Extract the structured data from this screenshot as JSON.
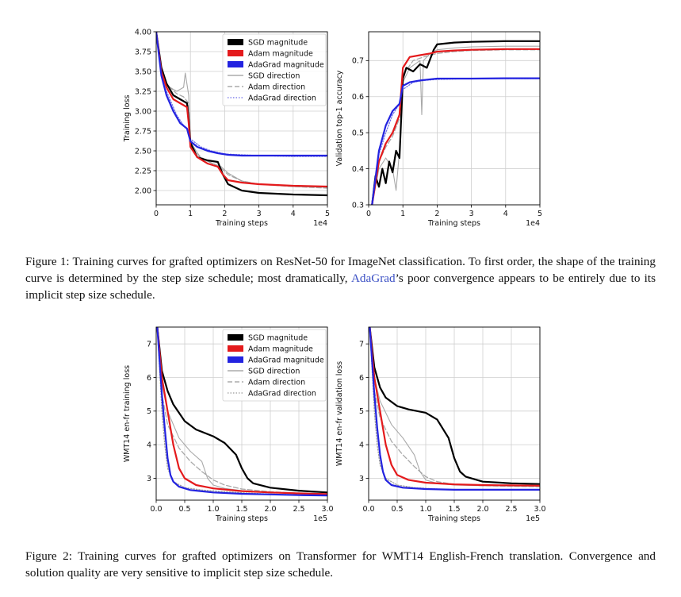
{
  "figure1": {
    "label": "Figure 1:",
    "caption_part1": "Training curves for grafted optimizers on ResNet-50 for ImageNet classification. To first order, the shape of the training curve is determined by the step size schedule; most dramatically, ",
    "caption_link": "AdaGrad",
    "caption_part2": "’s poor convergence appears to be entirely due to its implicit step size schedule."
  },
  "figure2": {
    "label": "Figure 2:",
    "caption": "Training curves for grafted optimizers on Transformer for WMT14 English-French translation. Convergence and solution quality are very sensitive to implicit step size schedule."
  },
  "chart_data": [
    {
      "id": "c1",
      "type": "line",
      "xlabel": "Training steps",
      "ylabel": "Training loss",
      "x_offset_label": "1e4",
      "xlim": [
        0,
        5
      ],
      "ylim": [
        1.82,
        4.0
      ],
      "xticks": [
        "0",
        "1",
        "2",
        "3",
        "4",
        "5"
      ],
      "yticks": [
        "2.00",
        "2.25",
        "2.50",
        "2.75",
        "3.00",
        "3.25",
        "3.50",
        "3.75",
        "4.00"
      ],
      "grid": true,
      "legend": {
        "placement": "top-right",
        "entries": [
          "SGD magnitude",
          "Adam magnitude",
          "AdaGrad magnitude",
          "SGD direction",
          "Adam direction",
          "AdaGrad direction"
        ]
      },
      "series": [
        {
          "name": "SGD magnitude",
          "color": "#000000",
          "style": "thick",
          "x": [
            0,
            0.15,
            0.3,
            0.5,
            0.7,
            0.9,
            0.95,
            1.0,
            1.2,
            1.5,
            1.8,
            1.95,
            2.1,
            2.5,
            3.0,
            4.0,
            5.0
          ],
          "y": [
            4.0,
            3.55,
            3.35,
            3.2,
            3.15,
            3.1,
            2.9,
            2.6,
            2.42,
            2.38,
            2.36,
            2.2,
            2.08,
            2.0,
            1.97,
            1.95,
            1.94
          ]
        },
        {
          "name": "Adam magnitude",
          "color": "#e41a1c",
          "style": "thick",
          "x": [
            0,
            0.15,
            0.3,
            0.5,
            0.7,
            0.9,
            0.95,
            1.0,
            1.2,
            1.5,
            1.8,
            1.95,
            2.1,
            2.5,
            3.0,
            4.0,
            5.0
          ],
          "y": [
            4.0,
            3.5,
            3.3,
            3.15,
            3.1,
            3.05,
            2.85,
            2.55,
            2.42,
            2.34,
            2.3,
            2.2,
            2.13,
            2.1,
            2.08,
            2.06,
            2.05
          ]
        },
        {
          "name": "AdaGrad magnitude",
          "color": "#2323e0",
          "style": "thick",
          "x": [
            0,
            0.15,
            0.3,
            0.5,
            0.7,
            0.9,
            0.95,
            1.0,
            1.2,
            1.5,
            1.8,
            1.95,
            2.1,
            2.5,
            3.0,
            4.0,
            5.0
          ],
          "y": [
            4.0,
            3.45,
            3.2,
            3.0,
            2.85,
            2.78,
            2.7,
            2.62,
            2.55,
            2.5,
            2.47,
            2.46,
            2.45,
            2.44,
            2.44,
            2.44,
            2.44
          ]
        },
        {
          "name": "SGD direction",
          "color": "#9a9a9a",
          "style": "solid",
          "x": [
            0,
            0.2,
            0.4,
            0.6,
            0.8,
            0.85,
            0.95,
            1.0,
            1.3,
            1.6,
            1.9,
            2.1,
            2.5,
            3.0,
            4.0,
            5.0
          ],
          "y": [
            4.0,
            3.4,
            3.3,
            3.25,
            3.3,
            3.48,
            3.2,
            2.62,
            2.4,
            2.35,
            2.3,
            2.22,
            2.12,
            2.08,
            2.05,
            2.04
          ]
        },
        {
          "name": "Adam direction",
          "color": "#9a9a9a",
          "style": "dashed",
          "x": [
            0,
            0.2,
            0.4,
            0.6,
            0.8,
            0.95,
            1.0,
            1.3,
            1.6,
            1.9,
            2.1,
            2.5,
            3.0,
            4.0,
            5.0
          ],
          "y": [
            4.0,
            3.4,
            3.3,
            3.22,
            3.18,
            3.1,
            2.58,
            2.42,
            2.35,
            2.28,
            2.2,
            2.12,
            2.08,
            2.05,
            2.03
          ]
        },
        {
          "name": "AdaGrad direction",
          "color": "#6b6be8",
          "style": "dotted",
          "x": [
            0,
            0.2,
            0.4,
            0.6,
            0.8,
            0.95,
            1.0,
            1.3,
            1.6,
            2.0,
            2.5,
            3.0,
            4.0,
            5.0
          ],
          "y": [
            4.0,
            3.35,
            3.15,
            2.95,
            2.82,
            2.75,
            2.65,
            2.55,
            2.5,
            2.46,
            2.45,
            2.44,
            2.43,
            2.43
          ]
        }
      ]
    },
    {
      "id": "c2",
      "type": "line",
      "xlabel": "Training steps",
      "ylabel": "Validation top-1 accuracy",
      "x_offset_label": "1e4",
      "xlim": [
        0,
        5
      ],
      "ylim": [
        0.3,
        0.78
      ],
      "xticks": [
        "0",
        "1",
        "2",
        "3",
        "4",
        "5"
      ],
      "yticks": [
        "0.3",
        "0.4",
        "0.5",
        "0.6",
        "0.7"
      ],
      "grid": true,
      "series": [
        {
          "name": "SGD magnitude",
          "color": "#000000",
          "style": "thick",
          "x": [
            0.1,
            0.2,
            0.3,
            0.4,
            0.5,
            0.6,
            0.7,
            0.8,
            0.9,
            1.0,
            1.1,
            1.3,
            1.5,
            1.7,
            1.9,
            2.0,
            2.5,
            3.0,
            4.0,
            5.0
          ],
          "y": [
            0.3,
            0.38,
            0.35,
            0.4,
            0.36,
            0.42,
            0.39,
            0.45,
            0.43,
            0.65,
            0.68,
            0.67,
            0.69,
            0.68,
            0.73,
            0.745,
            0.75,
            0.752,
            0.754,
            0.754
          ]
        },
        {
          "name": "Adam magnitude",
          "color": "#e41a1c",
          "style": "thick",
          "x": [
            0.1,
            0.3,
            0.5,
            0.7,
            0.9,
            1.0,
            1.2,
            1.5,
            1.8,
            2.0,
            2.5,
            3.0,
            4.0,
            5.0
          ],
          "y": [
            0.3,
            0.42,
            0.47,
            0.5,
            0.55,
            0.68,
            0.71,
            0.715,
            0.72,
            0.725,
            0.728,
            0.73,
            0.732,
            0.732
          ]
        },
        {
          "name": "AdaGrad magnitude",
          "color": "#2323e0",
          "style": "thick",
          "x": [
            0.1,
            0.3,
            0.5,
            0.7,
            0.9,
            1.0,
            1.2,
            1.5,
            2.0,
            2.5,
            3.0,
            4.0,
            5.0
          ],
          "y": [
            0.3,
            0.45,
            0.52,
            0.56,
            0.58,
            0.63,
            0.64,
            0.645,
            0.65,
            0.65,
            0.65,
            0.651,
            0.651
          ]
        },
        {
          "name": "SGD direction",
          "color": "#9a9a9a",
          "style": "solid",
          "x": [
            0.1,
            0.3,
            0.5,
            0.7,
            0.8,
            0.9,
            1.0,
            1.2,
            1.5,
            1.55,
            1.6,
            1.8,
            2.0,
            2.5,
            3.0,
            4.0,
            5.0
          ],
          "y": [
            0.3,
            0.4,
            0.43,
            0.4,
            0.34,
            0.45,
            0.64,
            0.68,
            0.7,
            0.55,
            0.7,
            0.72,
            0.73,
            0.735,
            0.738,
            0.74,
            0.74
          ]
        },
        {
          "name": "Adam direction",
          "color": "#9a9a9a",
          "style": "dashed",
          "x": [
            0.1,
            0.3,
            0.5,
            0.7,
            0.9,
            1.0,
            1.3,
            1.6,
            2.0,
            2.5,
            3.0,
            4.0,
            5.0
          ],
          "y": [
            0.3,
            0.42,
            0.46,
            0.49,
            0.54,
            0.66,
            0.7,
            0.71,
            0.72,
            0.725,
            0.728,
            0.73,
            0.73
          ]
        },
        {
          "name": "AdaGrad direction",
          "color": "#6b6be8",
          "style": "dotted",
          "x": [
            0.1,
            0.3,
            0.5,
            0.7,
            0.9,
            1.0,
            1.3,
            1.6,
            2.0,
            3.0,
            4.0,
            5.0
          ],
          "y": [
            0.3,
            0.44,
            0.5,
            0.55,
            0.58,
            0.62,
            0.64,
            0.645,
            0.648,
            0.65,
            0.65,
            0.65
          ]
        }
      ]
    },
    {
      "id": "c3",
      "type": "line",
      "xlabel": "Training steps",
      "ylabel": "WMT14 en-fr training loss",
      "x_offset_label": "1e5",
      "xlim": [
        0,
        3.0
      ],
      "ylim": [
        2.35,
        7.5
      ],
      "xticks": [
        "0.0",
        "0.5",
        "1.0",
        "1.5",
        "2.0",
        "2.5",
        "3.0"
      ],
      "yticks": [
        "3",
        "4",
        "5",
        "6",
        "7"
      ],
      "grid": true,
      "legend": {
        "placement": "top-right",
        "entries": [
          "SGD magnitude",
          "Adam magnitude",
          "AdaGrad magnitude",
          "SGD direction",
          "Adam direction",
          "AdaGrad direction"
        ]
      },
      "series": [
        {
          "name": "SGD magnitude",
          "color": "#000000",
          "style": "thick",
          "x": [
            0.02,
            0.1,
            0.2,
            0.3,
            0.5,
            0.7,
            1.0,
            1.2,
            1.4,
            1.5,
            1.6,
            1.7,
            2.0,
            2.5,
            3.0
          ],
          "y": [
            7.5,
            6.2,
            5.6,
            5.2,
            4.7,
            4.45,
            4.25,
            4.05,
            3.7,
            3.3,
            3.0,
            2.85,
            2.72,
            2.63,
            2.58
          ]
        },
        {
          "name": "Adam magnitude",
          "color": "#e41a1c",
          "style": "thick",
          "x": [
            0.02,
            0.1,
            0.2,
            0.3,
            0.4,
            0.5,
            0.7,
            1.0,
            1.5,
            2.0,
            2.5,
            3.0
          ],
          "y": [
            7.5,
            6.0,
            5.0,
            4.0,
            3.3,
            3.0,
            2.8,
            2.7,
            2.62,
            2.58,
            2.55,
            2.53
          ]
        },
        {
          "name": "AdaGrad magnitude",
          "color": "#2323e0",
          "style": "thick",
          "x": [
            0.02,
            0.1,
            0.15,
            0.2,
            0.25,
            0.3,
            0.4,
            0.6,
            1.0,
            1.5,
            2.0,
            2.5,
            3.0
          ],
          "y": [
            7.5,
            5.5,
            4.5,
            3.6,
            3.1,
            2.9,
            2.75,
            2.65,
            2.58,
            2.54,
            2.52,
            2.5,
            2.49
          ]
        },
        {
          "name": "SGD direction",
          "color": "#9a9a9a",
          "style": "solid",
          "x": [
            0.02,
            0.1,
            0.2,
            0.4,
            0.6,
            0.8,
            0.9,
            1.0,
            1.2,
            1.5,
            2.0,
            2.5,
            3.0
          ],
          "y": [
            7.5,
            5.8,
            5.0,
            4.2,
            3.8,
            3.5,
            3.0,
            2.8,
            2.7,
            2.63,
            2.58,
            2.55,
            2.53
          ]
        },
        {
          "name": "Adam direction",
          "color": "#9a9a9a",
          "style": "dashed",
          "x": [
            0.02,
            0.1,
            0.2,
            0.4,
            0.6,
            0.8,
            1.0,
            1.2,
            1.5,
            2.0,
            2.5,
            3.0
          ],
          "y": [
            7.5,
            5.5,
            4.6,
            3.9,
            3.5,
            3.2,
            2.95,
            2.8,
            2.68,
            2.6,
            2.56,
            2.54
          ]
        },
        {
          "name": "AdaGrad direction",
          "color": "#9a9a9a",
          "style": "dotted",
          "x": [
            0.02,
            0.1,
            0.15,
            0.2,
            0.3,
            0.5,
            0.8,
            1.2,
            1.6,
            2.0,
            2.5,
            3.0
          ],
          "y": [
            7.5,
            5.0,
            4.0,
            3.3,
            2.9,
            2.72,
            2.65,
            2.6,
            2.56,
            2.53,
            2.51,
            2.5
          ]
        }
      ]
    },
    {
      "id": "c4",
      "type": "line",
      "xlabel": "Training steps",
      "ylabel": "WMT14 en-fr validation loss",
      "x_offset_label": "1e5",
      "xlim": [
        0,
        3.0
      ],
      "ylim": [
        2.35,
        7.5
      ],
      "xticks": [
        "0.0",
        "0.5",
        "1.0",
        "1.5",
        "2.0",
        "2.5",
        "3.0"
      ],
      "yticks": [
        "3",
        "4",
        "5",
        "6",
        "7"
      ],
      "grid": true,
      "series": [
        {
          "name": "SGD magnitude",
          "color": "#000000",
          "style": "thick",
          "x": [
            0.02,
            0.1,
            0.2,
            0.3,
            0.5,
            0.7,
            1.0,
            1.2,
            1.4,
            1.5,
            1.6,
            1.7,
            2.0,
            2.5,
            3.0
          ],
          "y": [
            7.5,
            6.3,
            5.7,
            5.4,
            5.15,
            5.05,
            4.95,
            4.75,
            4.2,
            3.6,
            3.2,
            3.05,
            2.9,
            2.85,
            2.83
          ]
        },
        {
          "name": "Adam magnitude",
          "color": "#e41a1c",
          "style": "thick",
          "x": [
            0.02,
            0.1,
            0.2,
            0.3,
            0.4,
            0.5,
            0.7,
            1.0,
            1.5,
            2.0,
            2.5,
            3.0
          ],
          "y": [
            7.5,
            6.0,
            5.0,
            4.0,
            3.4,
            3.1,
            2.95,
            2.87,
            2.82,
            2.8,
            2.79,
            2.78
          ]
        },
        {
          "name": "AdaGrad magnitude",
          "color": "#2323e0",
          "style": "thick",
          "x": [
            0.02,
            0.1,
            0.15,
            0.2,
            0.25,
            0.3,
            0.4,
            0.6,
            1.0,
            1.5,
            2.0,
            2.5,
            3.0
          ],
          "y": [
            7.5,
            5.5,
            4.5,
            3.7,
            3.2,
            2.95,
            2.8,
            2.72,
            2.68,
            2.66,
            2.66,
            2.66,
            2.66
          ]
        },
        {
          "name": "SGD direction",
          "color": "#9a9a9a",
          "style": "solid",
          "x": [
            0.02,
            0.1,
            0.2,
            0.4,
            0.6,
            0.8,
            0.9,
            1.0,
            1.2,
            1.5,
            2.0,
            2.5,
            3.0
          ],
          "y": [
            7.5,
            6.0,
            5.3,
            4.6,
            4.2,
            3.7,
            3.2,
            2.95,
            2.85,
            2.8,
            2.78,
            2.77,
            2.76
          ]
        },
        {
          "name": "Adam direction",
          "color": "#9a9a9a",
          "style": "dashed",
          "x": [
            0.02,
            0.1,
            0.2,
            0.4,
            0.6,
            0.8,
            1.0,
            1.2,
            1.5,
            2.0,
            2.5,
            3.0
          ],
          "y": [
            7.5,
            5.6,
            4.8,
            4.1,
            3.7,
            3.35,
            3.05,
            2.9,
            2.82,
            2.78,
            2.76,
            2.75
          ]
        },
        {
          "name": "AdaGrad direction",
          "color": "#9a9a9a",
          "style": "dotted",
          "x": [
            0.02,
            0.1,
            0.15,
            0.2,
            0.3,
            0.5,
            0.8,
            1.2,
            1.6,
            2.0,
            2.5,
            3.0
          ],
          "y": [
            7.5,
            5.0,
            4.0,
            3.4,
            3.0,
            2.8,
            2.72,
            2.68,
            2.66,
            2.65,
            2.65,
            2.65
          ]
        }
      ]
    }
  ]
}
